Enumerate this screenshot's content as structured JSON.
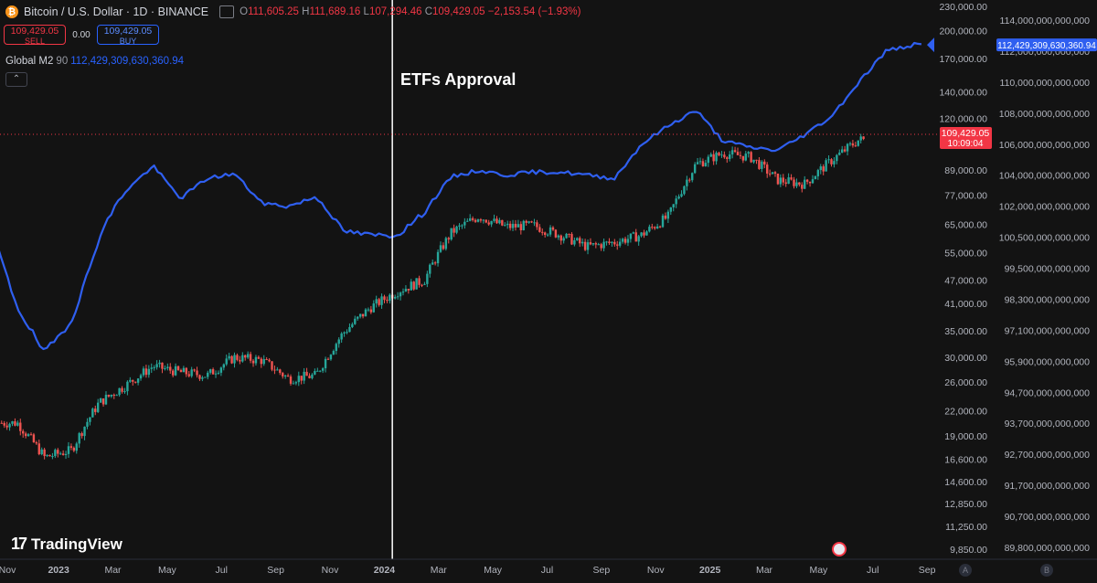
{
  "header": {
    "symbol_title": "Bitcoin / U.S. Dollar · 1D · BINANCE",
    "ohlc": {
      "o_label": "O",
      "o_value": "111,605.25",
      "h_label": "H",
      "h_value": "111,689.16",
      "l_label": "L",
      "l_value": "107,294.46",
      "c_label": "C",
      "c_value": "109,429.05",
      "change": "−2,153.54 (−1.93%)"
    },
    "sell_price": "109,429.05",
    "sell_label": "SELL",
    "spread": "0.00",
    "buy_price": "109,429.05",
    "buy_label": "BUY"
  },
  "indicator": {
    "name": "Global M2",
    "length": "90",
    "value": "112,429,309,630,360.94"
  },
  "annotation": {
    "etf_label": "ETFs Approval"
  },
  "branding": {
    "logo_mark": "17",
    "logo_text": "TradingView"
  },
  "corner": {
    "a": "A",
    "b": "B"
  },
  "colors": {
    "background": "#131313",
    "m2_line": "#2f5ff0",
    "candle_up": "#26a69a",
    "candle_down": "#ef5350",
    "price_tag": "#f23645",
    "event_line": "#ffffff"
  },
  "chart_data": {
    "type": "line",
    "x_axis_labels": [
      "Nov",
      "2023",
      "Mar",
      "May",
      "Jul",
      "Sep",
      "Nov",
      "2024",
      "Mar",
      "May",
      "Jul",
      "Sep",
      "Nov",
      "2025",
      "Mar",
      "May",
      "Jul",
      "Sep"
    ],
    "btc_axis": {
      "scale": "log",
      "tick_labels": [
        "230,000.00",
        "200,000.00",
        "170,000.00",
        "140,000.00",
        "120,000.00",
        "89,000.00",
        "77,000.00",
        "65,000.00",
        "55,000.00",
        "47,000.00",
        "41,000.00",
        "35,000.00",
        "30,000.00",
        "26,000.00",
        "22,000.00",
        "19,000.00",
        "16,600.00",
        "14,600.00",
        "12,850.00",
        "11,250.00",
        "9,850.00"
      ]
    },
    "m2_axis": {
      "tick_labels": [
        "114,000,000,000,000",
        "112,000,000,000,000",
        "110,000,000,000,000",
        "108,000,000,000,000",
        "106,000,000,000,000",
        "104,000,000,000,000",
        "102,000,000,000,000",
        "100,500,000,000,000",
        "99,500,000,000,000",
        "98,300,000,000,000",
        "97,100,000,000,000",
        "95,900,000,000,000",
        "94,700,000,000,000",
        "93,700,000,000,000",
        "92,700,000,000,000",
        "91,700,000,000,000",
        "90,700,000,000,000",
        "89,800,000,000,000"
      ]
    },
    "price_tag": {
      "value": "109,429.05",
      "countdown": "10:09:04"
    },
    "m2_tag": {
      "value": "112,429,309,630,360.94"
    },
    "event": {
      "label": "ETFs Approval",
      "date": "2024-01-10"
    },
    "series": [
      {
        "name": "Bitcoin / U.S. Dollar · 1D · BINANCE",
        "kind": "candles",
        "x": [
          "2022-11",
          "2022-12",
          "2023-01",
          "2023-02",
          "2023-03",
          "2023-04",
          "2023-05",
          "2023-06",
          "2023-07",
          "2023-08",
          "2023-09",
          "2023-10",
          "2023-11",
          "2023-12",
          "2024-01",
          "2024-02",
          "2024-03",
          "2024-04",
          "2024-05",
          "2024-06",
          "2024-07",
          "2024-08",
          "2024-09",
          "2024-10",
          "2024-11",
          "2024-12",
          "2025-01",
          "2025-02",
          "2025-03",
          "2025-04",
          "2025-05",
          "2025-06"
        ],
        "values": [
          20500,
          16800,
          17500,
          23000,
          25500,
          28500,
          27500,
          27000,
          30000,
          29500,
          26500,
          27000,
          34500,
          40000,
          44000,
          47000,
          62000,
          68000,
          64000,
          64500,
          61000,
          57000,
          58500,
          61000,
          68000,
          92000,
          98000,
          96000,
          84000,
          82000,
          94000,
          106000
        ]
      },
      {
        "name": "Global M2",
        "kind": "line",
        "x": [
          "2022-10",
          "2022-11",
          "2022-12",
          "2023-01",
          "2023-02",
          "2023-03",
          "2023-04",
          "2023-05",
          "2023-06",
          "2023-07",
          "2023-08",
          "2023-09",
          "2023-10",
          "2023-11",
          "2023-12",
          "2024-01",
          "2024-02",
          "2024-03",
          "2024-04",
          "2024-05",
          "2024-06",
          "2024-07",
          "2024-08",
          "2024-09",
          "2024-10",
          "2024-11",
          "2024-12",
          "2025-01",
          "2025-02",
          "2025-03",
          "2025-04",
          "2025-05",
          "2025-06",
          "2025-07",
          "2025-08"
        ],
        "values": [
          101000,
          98000,
          96200,
          97500,
          100500,
          103000,
          104600,
          102500,
          103800,
          104100,
          102200,
          102000,
          102600,
          100800,
          100600,
          100600,
          101700,
          103900,
          104300,
          104000,
          104200,
          104200,
          104000,
          103800,
          106000,
          107200,
          108200,
          106200,
          105800,
          105600,
          106600,
          107800,
          110000,
          112000,
          112400
        ]
      }
    ]
  }
}
